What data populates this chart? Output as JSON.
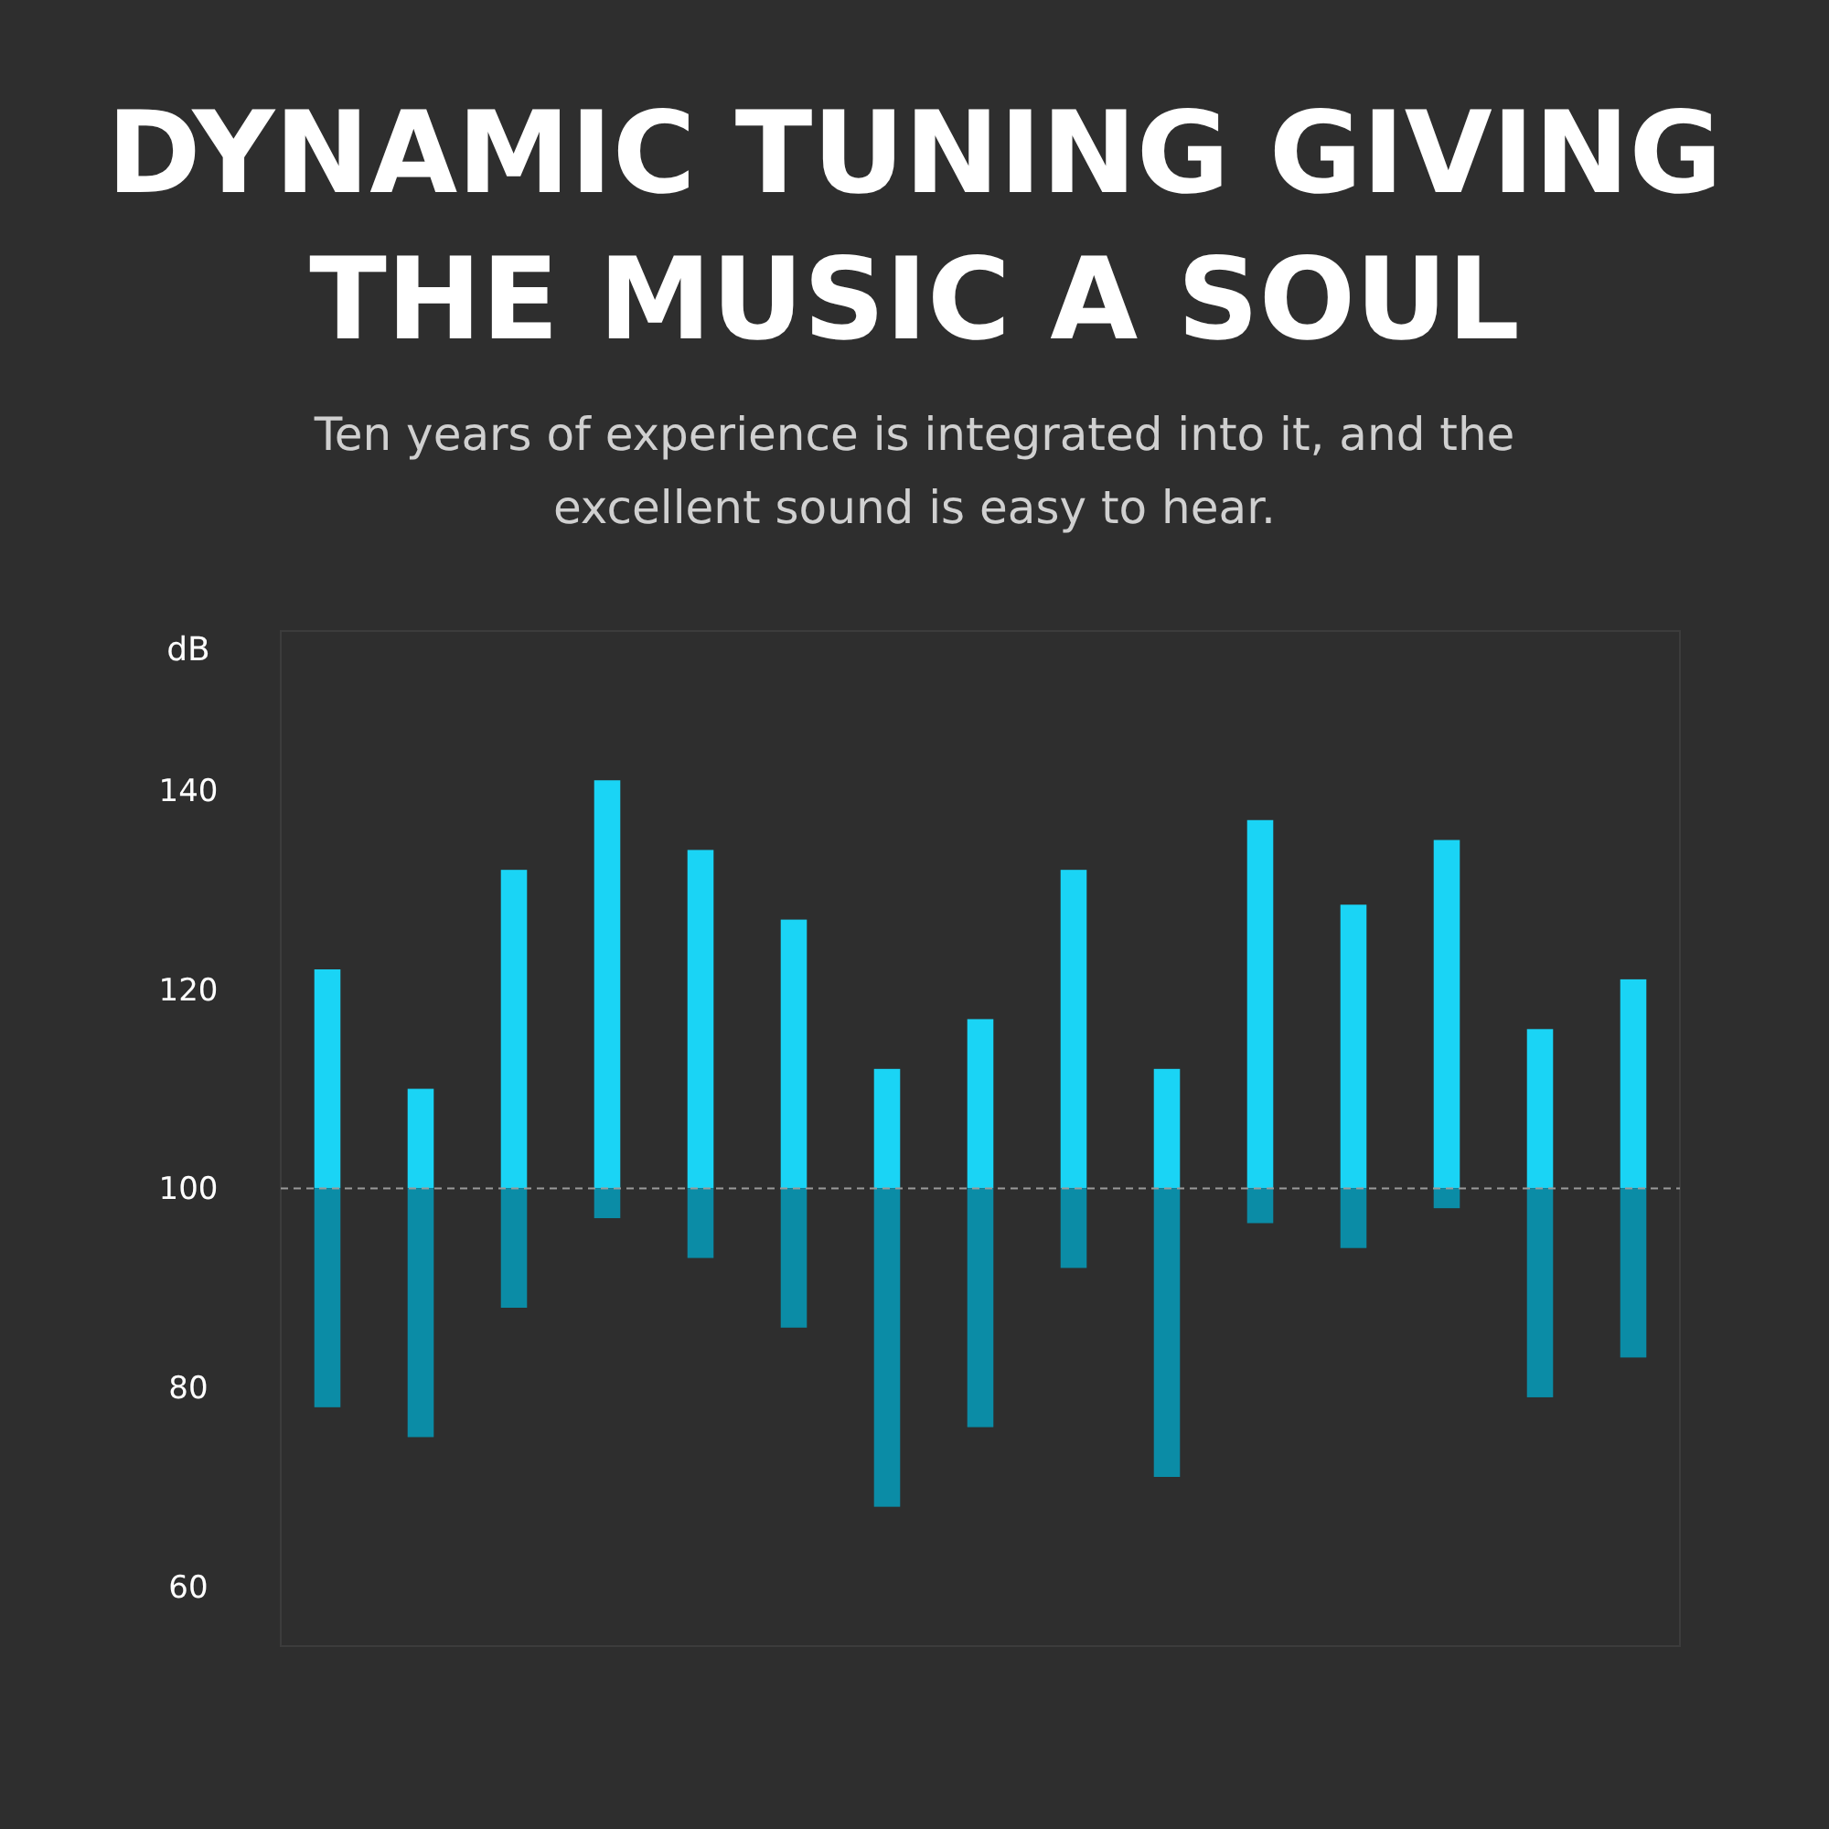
{
  "chart_data": {
    "type": "bar",
    "title": "DYNAMIC TUNING GIVING THE MUSIC A SOUL",
    "subtitle": "Ten years of experience is integrated into it, and the excellent sound is easy to hear.",
    "ylabel": "dB",
    "categories": [
      null,
      null,
      null,
      null,
      null,
      null,
      null,
      null,
      null,
      null,
      null,
      null,
      null,
      null,
      null
    ],
    "series": [
      {
        "color": "#1ad4f5",
        "base": [
          100,
          100,
          100,
          100,
          100,
          100,
          100,
          100,
          100,
          100,
          100,
          100,
          100,
          100,
          100
        ],
        "values": [
          22,
          10,
          32,
          41,
          34,
          27,
          12,
          17,
          32,
          12,
          37,
          28.5,
          35,
          16,
          21
        ]
      },
      {
        "color": "#0b8ca6",
        "base": [
          78,
          75,
          88,
          97,
          93,
          86,
          68,
          76,
          92,
          71,
          96.5,
          94,
          98,
          79,
          83
        ],
        "values": [
          22,
          25,
          12,
          3,
          7,
          14,
          32,
          24,
          8,
          29,
          3.5,
          6,
          2,
          21,
          17
        ]
      }
    ],
    "ylim": [
      54,
      156
    ],
    "yticks": [
      60,
      80,
      100,
      120,
      140
    ],
    "tick_labels": "y",
    "ref_lines": [
      {
        "axis": "y",
        "value": 100,
        "color": "#9a9a9a",
        "line_style": "dashed"
      }
    ]
  }
}
